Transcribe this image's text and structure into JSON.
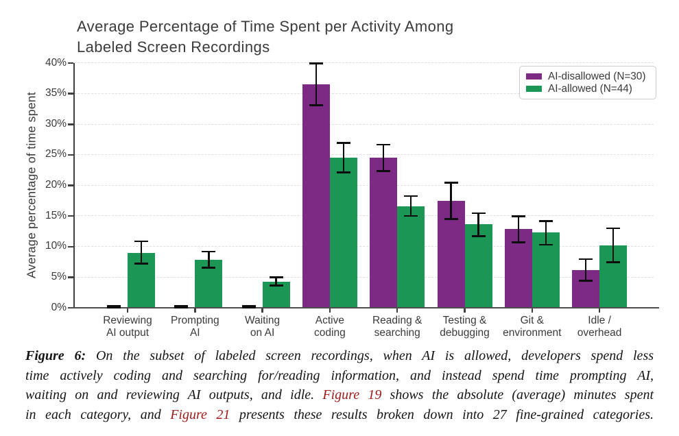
{
  "figure": {
    "title_lines": [
      "Average Percentage of Time Spent per Activity Among",
      "Labeled Screen Recordings"
    ]
  },
  "chart_data": {
    "type": "bar",
    "title": "Average Percentage of Time Spent per Activity Among Labeled Screen Recordings",
    "xlabel": "",
    "ylabel": "Average percentage of time spent",
    "ylim": [
      0,
      40
    ],
    "yticks": [
      0,
      5,
      10,
      15,
      20,
      25,
      30,
      35,
      40
    ],
    "ytick_suffix": "%",
    "grid": "horizontal-dashed",
    "legend_position": "top-right",
    "error_bars": true,
    "categories": [
      "Reviewing AI output",
      "Prompting AI",
      "Waiting on AI",
      "Active coding",
      "Reading & searching",
      "Testing & debugging",
      "Git & environment",
      "Idle / overhead"
    ],
    "category_label_lines": [
      [
        "Reviewing",
        "AI output"
      ],
      [
        "Prompting",
        "AI"
      ],
      [
        "Waiting",
        "on AI"
      ],
      [
        "Active",
        "coding"
      ],
      [
        "Reading &",
        "searching"
      ],
      [
        "Testing &",
        "debugging"
      ],
      [
        "Git &",
        "environment"
      ],
      [
        "Idle /",
        "overhead"
      ]
    ],
    "series": [
      {
        "name": "AI-disallowed (N=30)",
        "color": "#7d2a84",
        "values": [
          0.1,
          0.1,
          0.1,
          36.5,
          24.5,
          17.5,
          12.9,
          6.2
        ],
        "err_low": [
          0.0,
          0.0,
          0.0,
          33.1,
          22.3,
          14.5,
          10.7,
          4.4
        ],
        "err_high": [
          0.3,
          0.3,
          0.3,
          40.0,
          26.7,
          20.5,
          15.0,
          8.0
        ]
      },
      {
        "name": "AI-allowed (N=44)",
        "color": "#1b9655",
        "values": [
          9.0,
          7.8,
          4.3,
          24.5,
          16.6,
          13.7,
          12.3,
          10.2
        ],
        "err_low": [
          7.2,
          6.5,
          3.6,
          22.1,
          15.0,
          11.7,
          10.3,
          7.4
        ],
        "err_high": [
          10.9,
          9.2,
          5.0,
          27.0,
          18.3,
          15.5,
          14.2,
          13.0
        ]
      }
    ]
  },
  "caption": {
    "link_color": "#a01a1a",
    "lines": [
      [
        {
          "text": "Figure 6: ",
          "style": "bold"
        },
        {
          "text": "On the subset of labeled screen recordings, when AI is allowed, developers spend less",
          "style": "normal"
        }
      ],
      [
        {
          "text": "time actively coding and searching for/reading information, and instead spend time prompting AI,",
          "style": "normal"
        }
      ],
      [
        {
          "text": "waiting on and reviewing AI outputs, and idle. ",
          "style": "normal"
        },
        {
          "text": "Figure 19",
          "style": "link"
        },
        {
          "text": " shows the absolute (average) minutes spent",
          "style": "normal"
        }
      ],
      [
        {
          "text": "in each category, and ",
          "style": "normal"
        },
        {
          "text": "Figure 21",
          "style": "link"
        },
        {
          "text": " presents these results broken down into 27 fine-grained categories.",
          "style": "normal"
        }
      ]
    ]
  }
}
